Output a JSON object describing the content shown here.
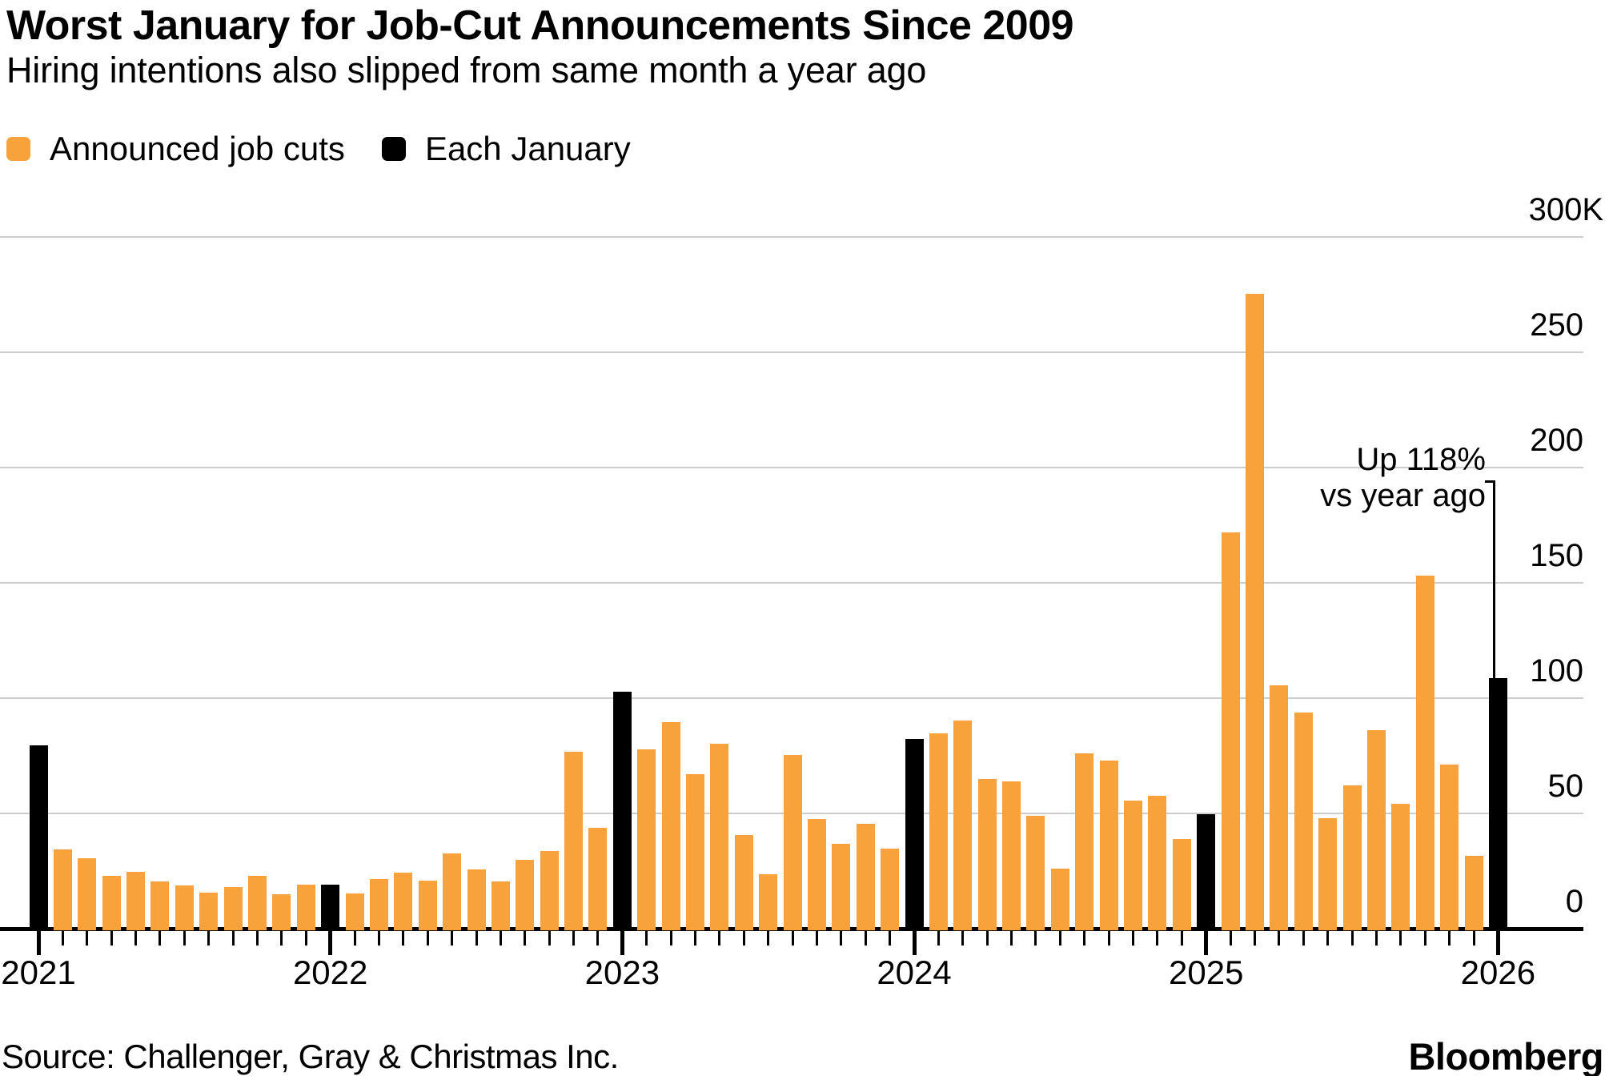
{
  "header": {
    "title": "Worst January for Job-Cut Announcements Since 2009",
    "subtitle": "Hiring intentions also slipped from same month a year ago"
  },
  "legend": {
    "items": [
      {
        "label": "Announced job cuts",
        "color": "#F7A23B"
      },
      {
        "label": "Each January",
        "color": "#000000"
      }
    ]
  },
  "annotation": {
    "line1": "Up 118%",
    "line2": "vs year ago"
  },
  "footer": {
    "source": "Source: Challenger, Gray & Christmas Inc.",
    "brand": "Bloomberg"
  },
  "chart_data": {
    "type": "bar",
    "title": "Worst January for Job-Cut Announcements Since 2009",
    "subtitle": "Hiring intentions also slipped from same month a year ago",
    "unit": "thousands of announced job cuts (K)",
    "x_start_month": "2021-01",
    "x_end_month": "2026-01",
    "x_tick_labels": [
      "2021",
      "2022",
      "2023",
      "2024",
      "2025",
      "2026"
    ],
    "y_tick_labels": [
      "300K",
      "250",
      "200",
      "150",
      "100",
      "50",
      "0"
    ],
    "y_ticks": [
      300,
      250,
      200,
      150,
      100,
      50,
      0
    ],
    "ylim": [
      0,
      300
    ],
    "grid": "horizontal",
    "legend_position": "top-left",
    "colors": {
      "announced_job_cuts": "#F7A23B",
      "each_january": "#000000",
      "gridline": "#CDCDCD"
    },
    "highlight_rule": "Every January bar is colored black ('Each January'); all other months are orange ('Announced job cuts')",
    "series": [
      {
        "name": "Announced job cuts, monthly, Jan 2021 - Jan 2026 (K)",
        "values": [
          79.6,
          34.5,
          30.6,
          22.9,
          24.6,
          20.5,
          18.9,
          15.7,
          17.9,
          22.8,
          14.9,
          19.1,
          19.1,
          15.2,
          21.4,
          24.3,
          20.7,
          32.5,
          25.8,
          20.5,
          30.0,
          33.8,
          76.8,
          43.7,
          102.9,
          77.8,
          89.7,
          67.0,
          80.1,
          40.7,
          23.7,
          75.2,
          47.5,
          36.8,
          45.5,
          34.8,
          82.3,
          84.6,
          90.3,
          64.8,
          63.8,
          48.8,
          25.9,
          75.9,
          72.8,
          55.6,
          57.7,
          38.8,
          49.8,
          172.0,
          275.2,
          105.4,
          93.8,
          48.0,
          62.1,
          86.0,
          54.1,
          153.1,
          71.3,
          31.5,
          108.6
        ]
      }
    ],
    "annotation": {
      "text": [
        "Up 118%",
        "vs year ago"
      ],
      "target_month": "2026-01",
      "target_value": 108.6
    }
  }
}
